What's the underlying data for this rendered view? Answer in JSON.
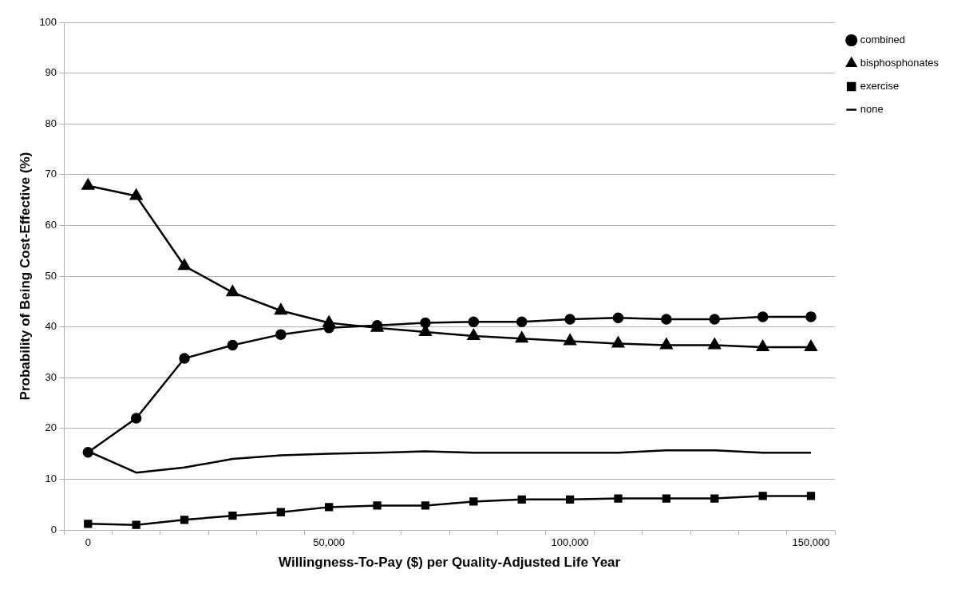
{
  "chart_data": {
    "type": "line",
    "xlabel": "Willingness-To-Pay ($) per Quality-Adjusted Life Year",
    "ylabel": "Probability of Being Cost-Effective (%)",
    "categories": [
      "0",
      null,
      null,
      null,
      null,
      "50,000",
      null,
      null,
      null,
      null,
      "100,000",
      null,
      null,
      null,
      null,
      "150,000"
    ],
    "series": [
      {
        "name": "combined",
        "color": "#000000",
        "marker": "circle",
        "values": [
          15.3,
          22,
          33.8,
          36.4,
          38.5,
          39.8,
          40.3,
          40.8,
          41,
          41,
          41.5,
          41.8,
          41.5,
          41.5,
          42,
          42
        ]
      },
      {
        "name": "bisphosphonates",
        "color": "#000000",
        "marker": "triangle",
        "values": [
          67.8,
          65.8,
          52,
          46.8,
          43.2,
          40.8,
          39.8,
          39,
          38.2,
          37.7,
          37.2,
          36.7,
          36.4,
          36.4,
          36,
          36
        ]
      },
      {
        "name": "exercise",
        "color": "#000000",
        "marker": "square",
        "values": [
          1.2,
          1,
          2,
          2.8,
          3.5,
          4.5,
          4.8,
          4.8,
          5.6,
          6,
          6,
          6.2,
          6.2,
          6.2,
          6.7,
          6.7
        ]
      },
      {
        "name": "none",
        "color": "#000000",
        "marker": "none",
        "values": [
          15.5,
          11.3,
          12.3,
          14,
          14.7,
          15,
          15.2,
          15.5,
          15.2,
          15.2,
          15.2,
          15.2,
          15.7,
          15.7,
          15.2,
          15.2
        ]
      }
    ],
    "ylim": [
      0,
      100
    ],
    "yticks": [
      0,
      10,
      20,
      30,
      40,
      50,
      60,
      70,
      80,
      90,
      100
    ],
    "grid": "y",
    "legend": "right",
    "line_style": "solid"
  }
}
